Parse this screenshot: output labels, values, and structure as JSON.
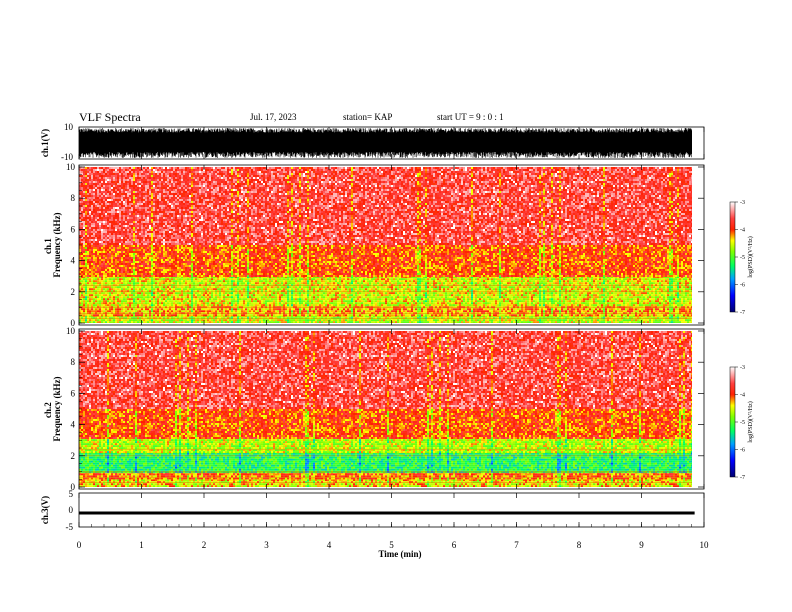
{
  "header": {
    "title": "VLF Spectra",
    "date": "Jul. 17, 2023",
    "station": "station= KAP",
    "start": "start UT = 9 : 0 : 1"
  },
  "colors": {
    "low": "#000080",
    "mid_low": "#00c0ff",
    "mid": "#00ff00",
    "mid_high": "#ffff00",
    "high": "#ff0000",
    "max": "#ffffff"
  },
  "chart_data": [
    {
      "type": "line",
      "panel": "ch1-waveform",
      "ylabel": "ch.1(V)",
      "ylim": [
        -10,
        10
      ],
      "y_ticks": [
        "10",
        "-10"
      ],
      "x_range_min": [
        0,
        10
      ],
      "data_extent_min": 9.85,
      "description_values": "dense oscillating waveform spanning roughly -8 to +10 V"
    },
    {
      "type": "heatmap",
      "panel": "ch1-spectrogram",
      "ylabel": "ch.1\nFrequency (kHz)",
      "ylim": [
        0,
        10
      ],
      "y_ticks": [
        "0",
        "2",
        "4",
        "6",
        "8",
        "10"
      ],
      "x_range_min": [
        0,
        10
      ],
      "data_extent_min": 9.85,
      "colorbar": {
        "label": "log(PSD)(V²/Hz)",
        "range": [
          -7,
          -3
        ],
        "ticks": [
          "-3",
          "-4",
          "-5",
          "-6",
          "-7"
        ]
      },
      "bands_khz": [
        {
          "from": 0,
          "to": 0.5,
          "level": -4.6
        },
        {
          "from": 0.5,
          "to": 1.2,
          "level": -4.2
        },
        {
          "from": 1.2,
          "to": 3.0,
          "level": -4.5
        },
        {
          "from": 3.0,
          "to": 5.0,
          "level": -4.0
        },
        {
          "from": 5.0,
          "to": 10.0,
          "level": -3.6
        }
      ]
    },
    {
      "type": "heatmap",
      "panel": "ch2-spectrogram",
      "ylabel": "ch.2\nFrequency (kHz)",
      "ylim": [
        0,
        10
      ],
      "y_ticks": [
        "0",
        "2",
        "4",
        "6",
        "8",
        "10"
      ],
      "x_range_min": [
        0,
        10
      ],
      "data_extent_min": 9.85,
      "colorbar": {
        "label": "log(PSD)(V²/Hz)",
        "range": [
          -7,
          -3
        ],
        "ticks": [
          "-3",
          "-4",
          "-5",
          "-6",
          "-7"
        ]
      },
      "bands_khz": [
        {
          "from": 0,
          "to": 0.5,
          "level": -4.4
        },
        {
          "from": 0.5,
          "to": 1.0,
          "level": -4.1
        },
        {
          "from": 1.0,
          "to": 2.2,
          "level": -5.2
        },
        {
          "from": 2.2,
          "to": 3.2,
          "level": -4.6
        },
        {
          "from": 3.2,
          "to": 5.0,
          "level": -4.0
        },
        {
          "from": 5.0,
          "to": 10.0,
          "level": -3.6
        }
      ]
    },
    {
      "type": "line",
      "panel": "ch3-waveform",
      "ylabel": "ch.3(V)",
      "ylim": [
        -5,
        5
      ],
      "y_ticks": [
        "5",
        "0",
        "-5"
      ],
      "x_range_min": [
        0,
        10
      ],
      "data_extent_min": 9.85,
      "band_v": [
        -1.5,
        -0.5
      ]
    }
  ],
  "x_axis": {
    "label": "Time (min)",
    "ticks": [
      "0",
      "1",
      "2",
      "3",
      "4",
      "5",
      "6",
      "7",
      "8",
      "9",
      "10"
    ],
    "range": [
      0,
      10
    ]
  }
}
